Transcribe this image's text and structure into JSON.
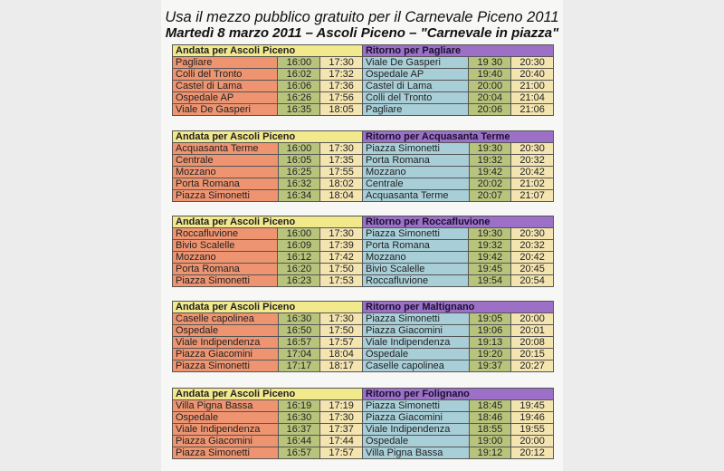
{
  "title": "Usa il mezzo pubblico gratuito per il Carnevale Piceno 2011",
  "subtitle": "Martedì 8 marzo 2011 – Ascoli Piceno – \"Carnevale in piazza\"",
  "colors": {
    "andata_header": "#f2e88c",
    "ritorno_header": "#9b70c6",
    "andata_stop": "#ee9470",
    "ritorno_stop": "#a8cfd8",
    "time1": "#b8c47c",
    "time2": "#f3e4b0"
  },
  "tables": [
    {
      "andata": "Andata per Ascoli Piceno",
      "ritorno": "Ritorno per Pagliare",
      "rows": [
        [
          "Pagliare",
          "16:00",
          "17:30",
          "Viale De Gasperi",
          "19 30",
          "20:30"
        ],
        [
          "Colli del Tronto",
          "16:02",
          "17:32",
          "Ospedale  AP",
          "19:40",
          "20:40"
        ],
        [
          "Castel di Lama",
          "16:06",
          "17:36",
          "Castel di Lama",
          "20:00",
          "21:00"
        ],
        [
          "Ospedale  AP",
          "16:26",
          "17:56",
          "Colli del Tronto",
          "20:04",
          "21:04"
        ],
        [
          "Viale De Gasperi",
          "16:35",
          "18:05",
          "Pagliare",
          "20:06",
          "21:06"
        ]
      ]
    },
    {
      "andata": "Andata per Ascoli Piceno",
      "ritorno": "Ritorno per Acquasanta Terme",
      "rows": [
        [
          "Acquasanta Terme",
          "16:00",
          "17:30",
          "Piazza Simonetti",
          "19:30",
          "20:30"
        ],
        [
          "Centrale",
          "16:05",
          "17:35",
          "Porta Romana",
          "19:32",
          "20:32"
        ],
        [
          "Mozzano",
          "16:25",
          "17:55",
          "Mozzano",
          "19:42",
          "20:42"
        ],
        [
          "Porta Romana",
          "16:32",
          "18:02",
          "Centrale",
          "20:02",
          "21:02"
        ],
        [
          "Piazza Simonetti",
          "16:34",
          "18:04",
          "Acquasanta Terme",
          "20:07",
          "21:07"
        ]
      ]
    },
    {
      "andata": "Andata per Ascoli Piceno",
      "ritorno": "Ritorno per Roccafluvione",
      "rows": [
        [
          "Roccafluvione",
          "16:00",
          "17:30",
          "Piazza Simonetti",
          "19:30",
          "20:30"
        ],
        [
          "Bivio Scalelle",
          "16:09",
          "17:39",
          "Porta Romana",
          "19:32",
          "20:32"
        ],
        [
          "Mozzano",
          "16:12",
          "17:42",
          "Mozzano",
          "19:42",
          "20:42"
        ],
        [
          "Porta Romana",
          "16:20",
          "17:50",
          "Bivio Scalelle",
          "19:45",
          "20:45"
        ],
        [
          "Piazza Simonetti",
          "16:23",
          "17:53",
          "Roccafluvione",
          "19:54",
          "20:54"
        ]
      ]
    },
    {
      "andata": "Andata per Ascoli Piceno",
      "ritorno": "Ritorno per Maltignano",
      "rows": [
        [
          "Caselle capolinea",
          "16:30",
          "17:30",
          "Piazza Simonetti",
          "19:05",
          "20:00"
        ],
        [
          "Ospedale",
          "16:50",
          "17:50",
          "Piazza Giacomini",
          "19:06",
          "20:01"
        ],
        [
          "Viale Indipendenza",
          "16:57",
          "17:57",
          "Viale Indipendenza",
          "19:13",
          "20:08"
        ],
        [
          "Piazza Giacomini",
          "17:04",
          "18:04",
          "Ospedale",
          "19:20",
          "20:15"
        ],
        [
          "Piazza Simonetti",
          "17:17",
          "18:17",
          "Caselle capolinea",
          "19:37",
          "20:27"
        ]
      ]
    },
    {
      "andata": "Andata per Ascoli Piceno",
      "ritorno": "Ritorno per Folignano",
      "rows": [
        [
          "Villa Pigna Bassa",
          "16:19",
          "17:19",
          "Piazza Simonetti",
          "18:45",
          "19:45"
        ],
        [
          "Ospedale",
          "16:30",
          "17:30",
          "Piazza Giacomini",
          "18:46",
          "19:46"
        ],
        [
          "Viale Indipendenza",
          "16:37",
          "17:37",
          "Viale Indipendenza",
          "18:55",
          "19:55"
        ],
        [
          "Piazza Giacomini",
          "16:44",
          "17:44",
          "Ospedale",
          "19:00",
          "20:00"
        ],
        [
          "Piazza Simonetti",
          "16:57",
          "17:57",
          "Villa Pigna Bassa",
          "19:12",
          "20:12"
        ]
      ]
    }
  ]
}
